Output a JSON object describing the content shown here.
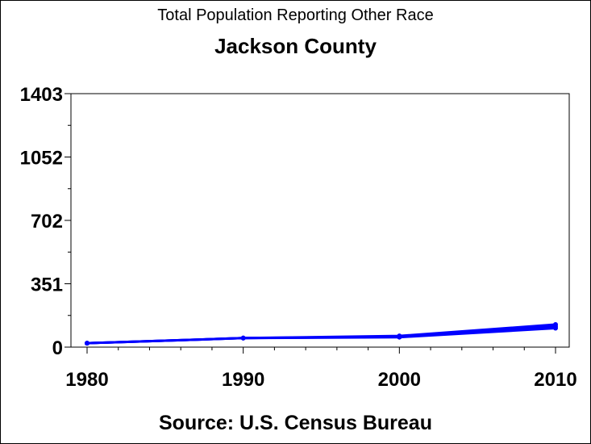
{
  "chart_data": {
    "type": "line",
    "title": "Total Population Reporting Other Race",
    "subtitle": "Jackson County",
    "source": "Source: U.S. Census Bureau",
    "xlabel": "",
    "ylabel": "",
    "xlim": [
      1980,
      2010
    ],
    "ylim": [
      0,
      1403
    ],
    "x_ticks": [
      "1980",
      "1990",
      "2000",
      "2010"
    ],
    "y_ticks": [
      "0",
      "351",
      "702",
      "1052",
      "1403"
    ],
    "series": [
      {
        "x": [
          1980,
          1990,
          2000,
          2010
        ],
        "values": [
          22,
          50,
          62,
          125
        ]
      },
      {
        "x": [
          1980,
          1990,
          2000,
          2010
        ],
        "values": [
          22,
          50,
          58,
          115
        ]
      },
      {
        "x": [
          1980,
          1990,
          2000,
          2010
        ],
        "values": [
          22,
          50,
          55,
          105
        ]
      }
    ],
    "line_color": "#0000ff",
    "grid": false
  }
}
